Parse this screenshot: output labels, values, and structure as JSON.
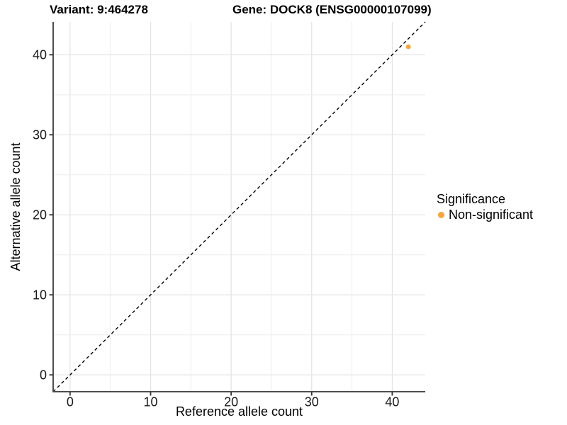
{
  "chart_data": {
    "type": "scatter",
    "title_left": "Variant: 9:464278",
    "title_right": "Gene: DOCK8 (ENSG00000107099)",
    "xlabel": "Reference allele count",
    "ylabel": "Alternative allele count",
    "xlim": [
      -2.1,
      44.1
    ],
    "ylim": [
      -2.1,
      44.1
    ],
    "xticks": [
      0,
      10,
      20,
      30,
      40
    ],
    "yticks": [
      0,
      10,
      20,
      30,
      40
    ],
    "minor_grid_step": 5,
    "grid": "major+minor",
    "identity_line": {
      "type": "abline",
      "slope": 1,
      "intercept": 0,
      "style": "dashed",
      "color": "#000000"
    },
    "series": [
      {
        "name": "Non-significant",
        "color": "#F9A53C",
        "points": [
          {
            "x": 42,
            "y": 41
          }
        ]
      }
    ],
    "legend": {
      "title": "Significance",
      "position": "right",
      "items": [
        {
          "label": "Non-significant",
          "color": "#F9A53C",
          "marker": "circle-icon"
        }
      ]
    }
  },
  "colors": {
    "background": "#FFFFFF",
    "point_orange": "#F9A53C",
    "grid_major": "#E2E2E2",
    "grid_minor": "#EDEDED",
    "axis_line": "#4D4D4D",
    "tick_mark": "#333333",
    "tick_label": "#1A1A1A",
    "identity_line": "#000000"
  }
}
